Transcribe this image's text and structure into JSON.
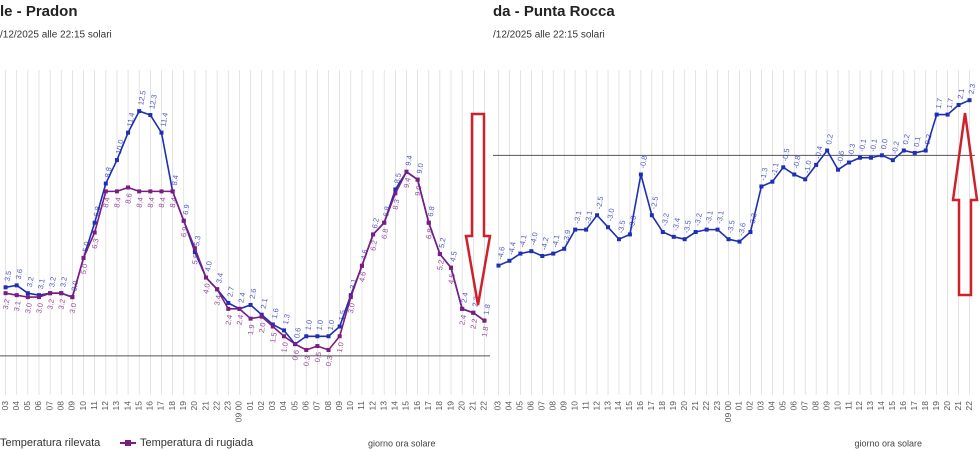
{
  "chart_data": [
    {
      "type": "line",
      "title": "le - Pradon",
      "subtitle": "/12/2025 alle 22:15 solari",
      "x_label": "giorno ora solare",
      "categories": [
        "03",
        "04",
        "05",
        "06",
        "07",
        "08",
        "09",
        "10",
        "11",
        "12",
        "13",
        "14",
        "15",
        "16",
        "17",
        "18",
        "19",
        "20",
        "21",
        "22",
        "23",
        "09 00",
        "01",
        "02",
        "03",
        "04",
        "05",
        "06",
        "07",
        "08",
        "09",
        "10",
        "11",
        "12",
        "13",
        "14",
        "15",
        "16",
        "17",
        "18",
        "19",
        "20",
        "21",
        "22"
      ],
      "series": [
        {
          "name": "Temperatura rilevata",
          "color": "#1f2fb3",
          "values": [
            3.5,
            3.6,
            3.2,
            3.1,
            3.2,
            3.2,
            3.0,
            5.0,
            6.8,
            8.8,
            10.0,
            11.4,
            12.5,
            12.3,
            11.4,
            8.4,
            6.9,
            5.3,
            4.0,
            3.4,
            2.7,
            2.4,
            2.6,
            2.1,
            1.6,
            1.3,
            0.6,
            1.0,
            1.0,
            1.0,
            1.5,
            3.1,
            4.6,
            6.2,
            6.8,
            8.5,
            9.4,
            9.0,
            6.8,
            5.2,
            4.5,
            2.4,
            2.2,
            1.8
          ],
          "value_labels": [
            "3.5",
            "3.6",
            "3.2",
            "3.1",
            "3.2",
            "3.2",
            "3.0",
            "5.0",
            "6.8",
            "8.8",
            "10.0",
            "11.4",
            "12.5",
            "12.3",
            "11.4",
            "8.4",
            "6.9",
            "5.3",
            "4.0",
            "3.4",
            "2.7",
            "2.4",
            "2.6",
            "2.1",
            "1.6",
            "1.3",
            "0.6",
            "1.0",
            "1.0",
            "1.0",
            "1.5",
            "3.1",
            "4.6",
            "6.2",
            "6.8",
            "8.5",
            "9.4",
            "9.0",
            "6.8",
            "5.2",
            "4.5",
            "2.4",
            "2.2",
            "1.8"
          ]
        },
        {
          "name": "Temperatura di rugiada",
          "color": "#7b1c84",
          "values": [
            3.2,
            3.1,
            3.0,
            3.0,
            3.2,
            3.2,
            3.0,
            5.0,
            6.3,
            8.4,
            8.4,
            8.6,
            8.4,
            8.4,
            8.4,
            8.4,
            6.9,
            5.5,
            4.0,
            3.4,
            2.4,
            2.4,
            1.9,
            2.0,
            1.5,
            1.0,
            0.6,
            0.3,
            0.5,
            0.3,
            1.0,
            3.0,
            4.6,
            6.2,
            6.8,
            8.3,
            9.4,
            9.0,
            6.8,
            5.2,
            4.5,
            2.4,
            2.2,
            1.8
          ],
          "value_labels": [
            "3.2",
            "3.1",
            "3.0",
            "3.0",
            "3.2",
            "3.2",
            "3.0",
            "5.0",
            "6.3",
            "8.4",
            "8.4",
            "8.6",
            "8.4",
            "8.4",
            "8.4",
            "8.4",
            "6.9",
            "5.5",
            "4.0",
            "3.4",
            "2.4",
            "2.4",
            "1.9",
            "2.0",
            "1.5",
            "1.0",
            "0.6",
            "0.3",
            "0.5",
            "0.3",
            "1.0",
            "3.0",
            "4.6",
            "6.2",
            "6.8",
            "8.3",
            "9.4",
            "9.0",
            "6.8",
            "5.2",
            "4.5",
            "2.4",
            "2.2",
            "1.8"
          ]
        }
      ],
      "ylim": [
        -2,
        14.6
      ],
      "zero_line": true,
      "grid": true,
      "legend": "bottom-left"
    },
    {
      "type": "line",
      "title": "da - Punta Rocca",
      "subtitle": "/12/2025 alle 22:15 solari",
      "x_label": "giorno ora solare",
      "categories": [
        "03",
        "04",
        "05",
        "06",
        "07",
        "08",
        "09",
        "10",
        "11",
        "12",
        "13",
        "14",
        "15",
        "16",
        "17",
        "18",
        "19",
        "20",
        "21",
        "22",
        "23",
        "09 00",
        "01",
        "02",
        "03",
        "04",
        "05",
        "06",
        "07",
        "08",
        "09",
        "10",
        "11",
        "12",
        "13",
        "14",
        "15",
        "16",
        "17",
        "18",
        "19",
        "20",
        "21",
        "22"
      ],
      "series": [
        {
          "color": "#1f2fb3",
          "values": [
            -4.6,
            -4.4,
            -4.1,
            -4.0,
            -4.2,
            -4.1,
            -3.9,
            -3.1,
            -3.1,
            -2.5,
            -3.0,
            -3.5,
            -3.3,
            -0.8,
            -2.5,
            -3.2,
            -3.4,
            -3.5,
            -3.2,
            -3.1,
            -3.1,
            -3.5,
            -3.6,
            -3.2,
            -1.3,
            -1.1,
            -0.5,
            -0.8,
            -1.0,
            -0.4,
            0.2,
            -0.6,
            -0.3,
            -0.1,
            -0.1,
            0.0,
            -0.2,
            0.2,
            0.1,
            0.2,
            1.7,
            1.7,
            2.1,
            2.3
          ],
          "value_labels": [
            "-4.6",
            "-4.4",
            "-4.1",
            "-4.0",
            "-4.2",
            "-4.1",
            "-3.9",
            "-3.1",
            "-3.1",
            "-2.5",
            "-3.0",
            "-3.5",
            "-3.3",
            "-0.8",
            "-2.5",
            "-3.2",
            "-3.4",
            "-3.5",
            "-3.2",
            "-3.1",
            "-3.1",
            "-3.5",
            "-3.6",
            "-3.2",
            "-1.3",
            "-1.1",
            "-0.5",
            "-0.8",
            "-1.0",
            "-0.4",
            "0.2",
            "-0.6",
            "-0.3",
            "-0.1",
            "-0.1",
            "0.0",
            "-0.2",
            "0.2",
            "0.1",
            "0.2",
            "1.7",
            "1.7",
            "2.1",
            "2.3"
          ]
        }
      ],
      "ylim": [
        -10,
        3.56
      ],
      "zero_line": true,
      "grid": true
    }
  ]
}
